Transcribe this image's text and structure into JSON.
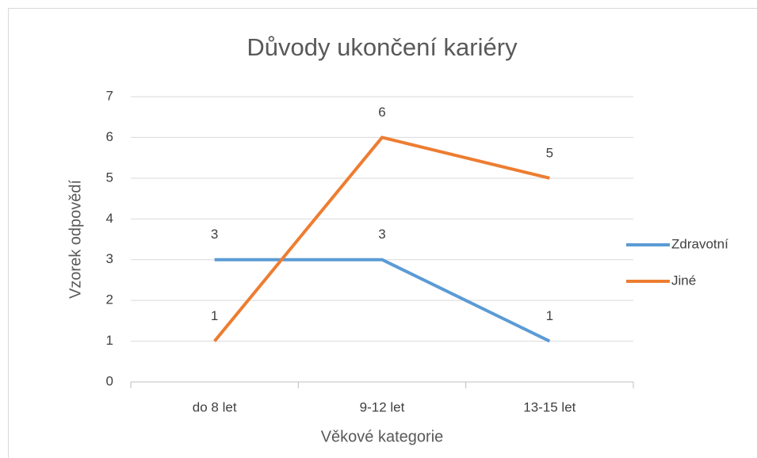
{
  "chart_data": {
    "type": "line",
    "title": "Důvody ukončení kariéry",
    "x_label": "Věkové kategorie",
    "y_label": "Vzorek odpovědí",
    "categories": [
      "do 8 let",
      "9-12 let",
      "13-15 let"
    ],
    "series": [
      {
        "name": "Zdravotní",
        "color": "#5b9bd5",
        "values": [
          3,
          3,
          1
        ]
      },
      {
        "name": "Jiné",
        "color": "#ed7d31",
        "values": [
          1,
          6,
          5
        ]
      }
    ],
    "ylim": [
      0,
      7
    ],
    "yticks": [
      0,
      1,
      2,
      3,
      4,
      5,
      6,
      7
    ],
    "grid": true,
    "legend": "right",
    "data_labels": true
  }
}
